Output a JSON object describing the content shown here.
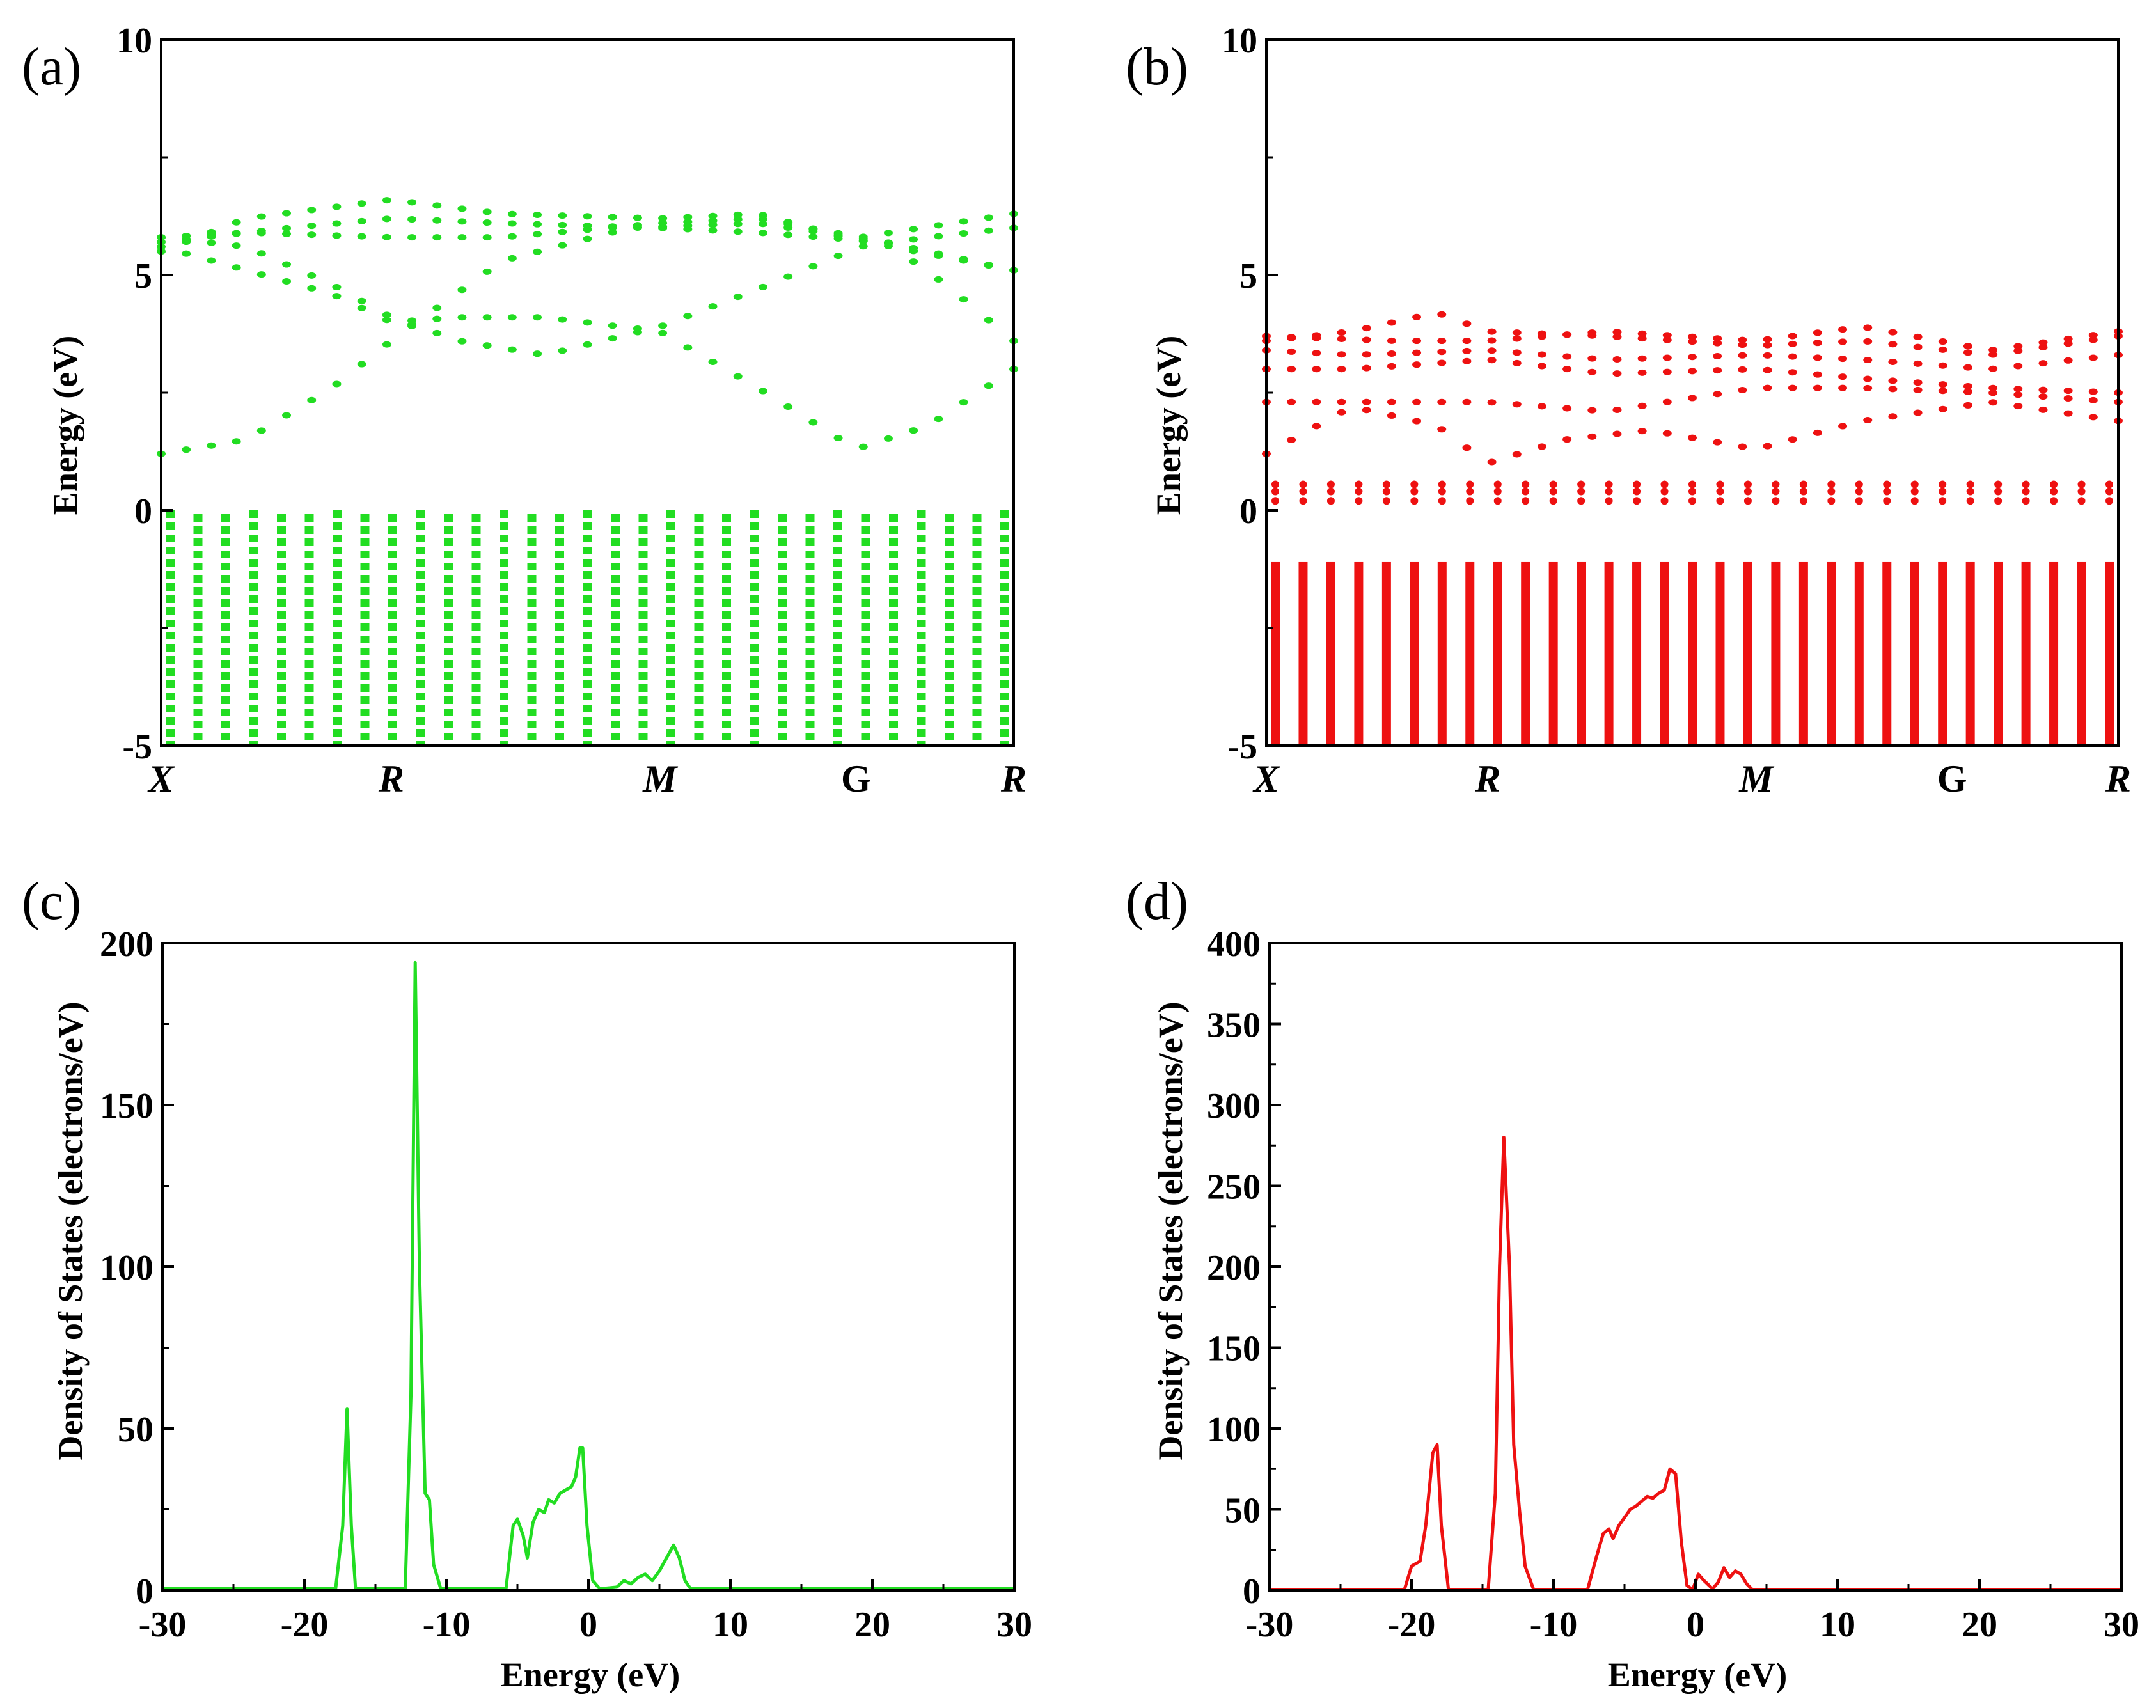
{
  "colors": {
    "green": "#22dd22",
    "red": "#ee1111",
    "axis": "#000000"
  },
  "chart_data": [
    {
      "id": "a",
      "type": "scatter",
      "panel_label": "(a)",
      "title": "",
      "xlabel": "",
      "ylabel": "Energy (eV)",
      "ylim": [
        -5,
        10
      ],
      "yticks": [
        "-5",
        "0",
        "5",
        "10"
      ],
      "kpoints": [
        {
          "label": "X",
          "pos": 0.0,
          "italic": true
        },
        {
          "label": "R",
          "pos": 0.27,
          "italic": true
        },
        {
          "label": "M",
          "pos": 0.585,
          "italic": true
        },
        {
          "label": "G",
          "pos": 0.815,
          "italic": false
        },
        {
          "label": "R",
          "pos": 1.0,
          "italic": true
        }
      ],
      "color": "green",
      "conduction_bands": [
        [
          [
            0,
            1.2
          ],
          [
            0.1,
            1.5
          ],
          [
            0.2,
            2.6
          ],
          [
            0.27,
            3.6
          ],
          [
            0.4,
            5.3
          ],
          [
            0.55,
            6.0
          ],
          [
            0.7,
            6.1
          ],
          [
            0.85,
            5.7
          ],
          [
            1.0,
            5.1
          ]
        ],
        [
          [
            0.0,
            5.8
          ],
          [
            0.1,
            5.6
          ],
          [
            0.2,
            4.8
          ],
          [
            0.27,
            4.1
          ],
          [
            0.35,
            3.6
          ],
          [
            0.45,
            3.3
          ],
          [
            0.585,
            3.9
          ],
          [
            0.7,
            4.7
          ],
          [
            0.82,
            5.6
          ],
          [
            0.9,
            5.8
          ],
          [
            1.0,
            6.0
          ]
        ],
        [
          [
            0.0,
            5.8
          ],
          [
            0.1,
            5.9
          ],
          [
            0.27,
            5.8
          ],
          [
            0.4,
            5.8
          ],
          [
            0.585,
            6.1
          ],
          [
            0.7,
            6.2
          ],
          [
            0.82,
            5.8
          ],
          [
            1.0,
            6.3
          ]
        ],
        [
          [
            0.0,
            5.5
          ],
          [
            0.1,
            6.2
          ],
          [
            0.27,
            6.6
          ],
          [
            0.4,
            6.3
          ],
          [
            0.585,
            6.2
          ],
          [
            0.7,
            6.3
          ],
          [
            0.8,
            5.8
          ],
          [
            1.0,
            5.1
          ]
        ],
        [
          [
            0.0,
            5.6
          ],
          [
            0.1,
            5.1
          ],
          [
            0.2,
            4.6
          ],
          [
            0.27,
            4.0
          ],
          [
            0.35,
            4.1
          ],
          [
            0.45,
            4.1
          ],
          [
            0.585,
            3.8
          ],
          [
            0.7,
            2.6
          ],
          [
            0.815,
            1.3
          ],
          [
            0.9,
            1.8
          ],
          [
            1.0,
            3.0
          ]
        ],
        [
          [
            0.0,
            5.7
          ],
          [
            0.15,
            6.0
          ],
          [
            0.27,
            6.2
          ],
          [
            0.4,
            6.1
          ],
          [
            0.585,
            6.0
          ],
          [
            0.7,
            5.9
          ],
          [
            0.85,
            5.7
          ],
          [
            0.92,
            4.8
          ],
          [
            1.0,
            3.6
          ]
        ]
      ],
      "valence_top": 0,
      "valence_bottom": -5,
      "valence_columns": 31
    },
    {
      "id": "b",
      "type": "scatter",
      "panel_label": "(b)",
      "title": "",
      "xlabel": "",
      "ylabel": "Energy (eV)",
      "ylim": [
        -5,
        10
      ],
      "yticks": [
        "-5",
        "0",
        "5",
        "10"
      ],
      "kpoints": [
        {
          "label": "X",
          "pos": 0.0,
          "italic": true
        },
        {
          "label": "R",
          "pos": 0.26,
          "italic": true
        },
        {
          "label": "M",
          "pos": 0.575,
          "italic": true
        },
        {
          "label": "G",
          "pos": 0.805,
          "italic": false
        },
        {
          "label": "R",
          "pos": 1.0,
          "italic": true
        }
      ],
      "color": "red",
      "conduction_bands": [
        [
          [
            0,
            1.2
          ],
          [
            0.1,
            2.2
          ],
          [
            0.2,
            1.8
          ],
          [
            0.26,
            1.0
          ],
          [
            0.35,
            1.5
          ],
          [
            0.45,
            1.7
          ],
          [
            0.575,
            1.3
          ],
          [
            0.7,
            1.9
          ],
          [
            0.85,
            2.3
          ],
          [
            1.0,
            1.9
          ]
        ],
        [
          [
            0,
            2.3
          ],
          [
            0.1,
            2.3
          ],
          [
            0.26,
            2.3
          ],
          [
            0.4,
            2.1
          ],
          [
            0.575,
            2.6
          ],
          [
            0.7,
            2.6
          ],
          [
            0.85,
            2.5
          ],
          [
            1.0,
            2.3
          ]
        ],
        [
          [
            0,
            3.0
          ],
          [
            0.1,
            3.0
          ],
          [
            0.26,
            3.2
          ],
          [
            0.4,
            2.9
          ],
          [
            0.575,
            3.0
          ],
          [
            0.7,
            2.8
          ],
          [
            0.85,
            2.6
          ],
          [
            1.0,
            2.5
          ]
        ],
        [
          [
            0,
            3.4
          ],
          [
            0.1,
            3.3
          ],
          [
            0.26,
            3.4
          ],
          [
            0.4,
            3.2
          ],
          [
            0.575,
            3.3
          ],
          [
            0.7,
            3.2
          ],
          [
            0.85,
            3.0
          ],
          [
            1.0,
            3.3
          ]
        ],
        [
          [
            0,
            3.6
          ],
          [
            0.1,
            3.8
          ],
          [
            0.2,
            4.2
          ],
          [
            0.26,
            3.8
          ],
          [
            0.4,
            3.7
          ],
          [
            0.575,
            3.5
          ],
          [
            0.7,
            3.6
          ],
          [
            0.85,
            3.3
          ],
          [
            1.0,
            3.7
          ]
        ],
        [
          [
            0,
            3.7
          ],
          [
            0.15,
            3.6
          ],
          [
            0.26,
            3.6
          ],
          [
            0.4,
            3.8
          ],
          [
            0.575,
            3.6
          ],
          [
            0.7,
            3.9
          ],
          [
            0.85,
            3.4
          ],
          [
            1.0,
            3.8
          ]
        ]
      ],
      "flat_bands": [
        0.2,
        0.4,
        0.55
      ],
      "valence_top": -1.1,
      "valence_bottom": -5,
      "valence_columns": 31
    },
    {
      "id": "c",
      "type": "line",
      "panel_label": "(c)",
      "title": "",
      "xlabel": "Energy (eV)",
      "ylabel": "Density of States (electrons/eV)",
      "xlim": [
        -30,
        30
      ],
      "ylim": [
        0,
        200
      ],
      "xticks": [
        "-30",
        "-20",
        "-10",
        "0",
        "10",
        "20",
        "30"
      ],
      "yticks": [
        "0",
        "50",
        "100",
        "150",
        "200"
      ],
      "color": "green",
      "series": [
        {
          "name": "DOS",
          "x": [
            -30,
            -17.8,
            -17.3,
            -17.0,
            -16.7,
            -16.4,
            -12.9,
            -12.5,
            -12.2,
            -11.9,
            -11.5,
            -11.2,
            -10.9,
            -10.4,
            -5.8,
            -5.3,
            -5.0,
            -4.6,
            -4.3,
            -3.9,
            -3.5,
            -3.1,
            -2.8,
            -2.4,
            -2.0,
            -1.6,
            -1.2,
            -0.9,
            -0.6,
            -0.4,
            -0.1,
            0.3,
            0.8,
            2.0,
            2.5,
            3.0,
            3.5,
            4.0,
            4.5,
            5.0,
            5.5,
            6.0,
            6.4,
            6.8,
            7.2,
            30
          ],
          "y": [
            0.5,
            0.5,
            20,
            56,
            20,
            0.5,
            0.5,
            60,
            194,
            100,
            30,
            28,
            8,
            0.5,
            0.5,
            20,
            22,
            17,
            10,
            21,
            25,
            24,
            28,
            27,
            30,
            31,
            32,
            35,
            44,
            44,
            20,
            3,
            0.5,
            1,
            3,
            2,
            4,
            5,
            3,
            6,
            10,
            14,
            10,
            3,
            0.5,
            0.5
          ]
        }
      ]
    },
    {
      "id": "d",
      "type": "line",
      "panel_label": "(d)",
      "title": "",
      "xlabel": "Energy (eV)",
      "ylabel": "Density of States (electrons/eV)",
      "xlim": [
        -30,
        30
      ],
      "ylim": [
        0,
        400
      ],
      "xticks": [
        "-30",
        "-20",
        "-10",
        "0",
        "10",
        "20",
        "30"
      ],
      "yticks": [
        "0",
        "50",
        "100",
        "150",
        "200",
        "250",
        "300",
        "350",
        "400"
      ],
      "color": "red",
      "series": [
        {
          "name": "DOS",
          "x": [
            -30,
            -20.5,
            -20.0,
            -19.4,
            -19.0,
            -18.5,
            -18.2,
            -17.9,
            -17.4,
            -14.6,
            -14.1,
            -13.8,
            -13.5,
            -13.1,
            -12.8,
            -12.4,
            -12.0,
            -11.4,
            -7.6,
            -7.0,
            -6.5,
            -6.1,
            -5.8,
            -5.4,
            -5.0,
            -4.6,
            -4.2,
            -3.8,
            -3.4,
            -3.0,
            -2.6,
            -2.2,
            -1.8,
            -1.4,
            -1.0,
            -0.6,
            -0.2,
            0.2,
            0.6,
            1.2,
            1.6,
            2.0,
            2.4,
            2.8,
            3.2,
            3.6,
            4.0,
            4.6,
            30
          ],
          "y": [
            0.5,
            0.5,
            15,
            18,
            40,
            85,
            90,
            40,
            0.5,
            0.5,
            60,
            200,
            280,
            200,
            90,
            50,
            15,
            0.5,
            0.5,
            20,
            35,
            38,
            32,
            40,
            45,
            50,
            52,
            55,
            58,
            57,
            60,
            62,
            75,
            72,
            30,
            3,
            0.5,
            10,
            6,
            1,
            5,
            14,
            8,
            12,
            10,
            4,
            0.5,
            0.5,
            0.5
          ]
        }
      ]
    }
  ]
}
